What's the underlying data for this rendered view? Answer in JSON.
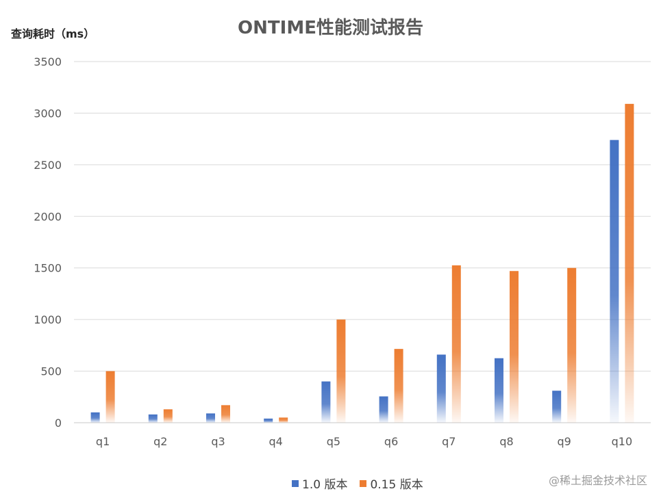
{
  "chart_data": {
    "type": "bar",
    "title": "ONTIME性能测试报告",
    "ylabel": "查询耗时（ms）",
    "xlabel": "",
    "categories": [
      "q1",
      "q2",
      "q3",
      "q4",
      "q5",
      "q6",
      "q7",
      "q8",
      "q9",
      "q10"
    ],
    "series": [
      {
        "name": "1.0 版本",
        "color": "#4472C4",
        "values": [
          100,
          80,
          90,
          40,
          400,
          255,
          660,
          625,
          310,
          2740
        ]
      },
      {
        "name": "0.15 版本",
        "color": "#ED7D31",
        "values": [
          500,
          130,
          170,
          50,
          1000,
          715,
          1525,
          1470,
          1500,
          3090
        ]
      }
    ],
    "ylim": [
      0,
      3500
    ],
    "yticks": [
      0,
      500,
      1000,
      1500,
      2000,
      2500,
      3000,
      3500
    ],
    "grid": true,
    "legend_position": "bottom"
  },
  "watermark": "@稀土掘金技术社区"
}
